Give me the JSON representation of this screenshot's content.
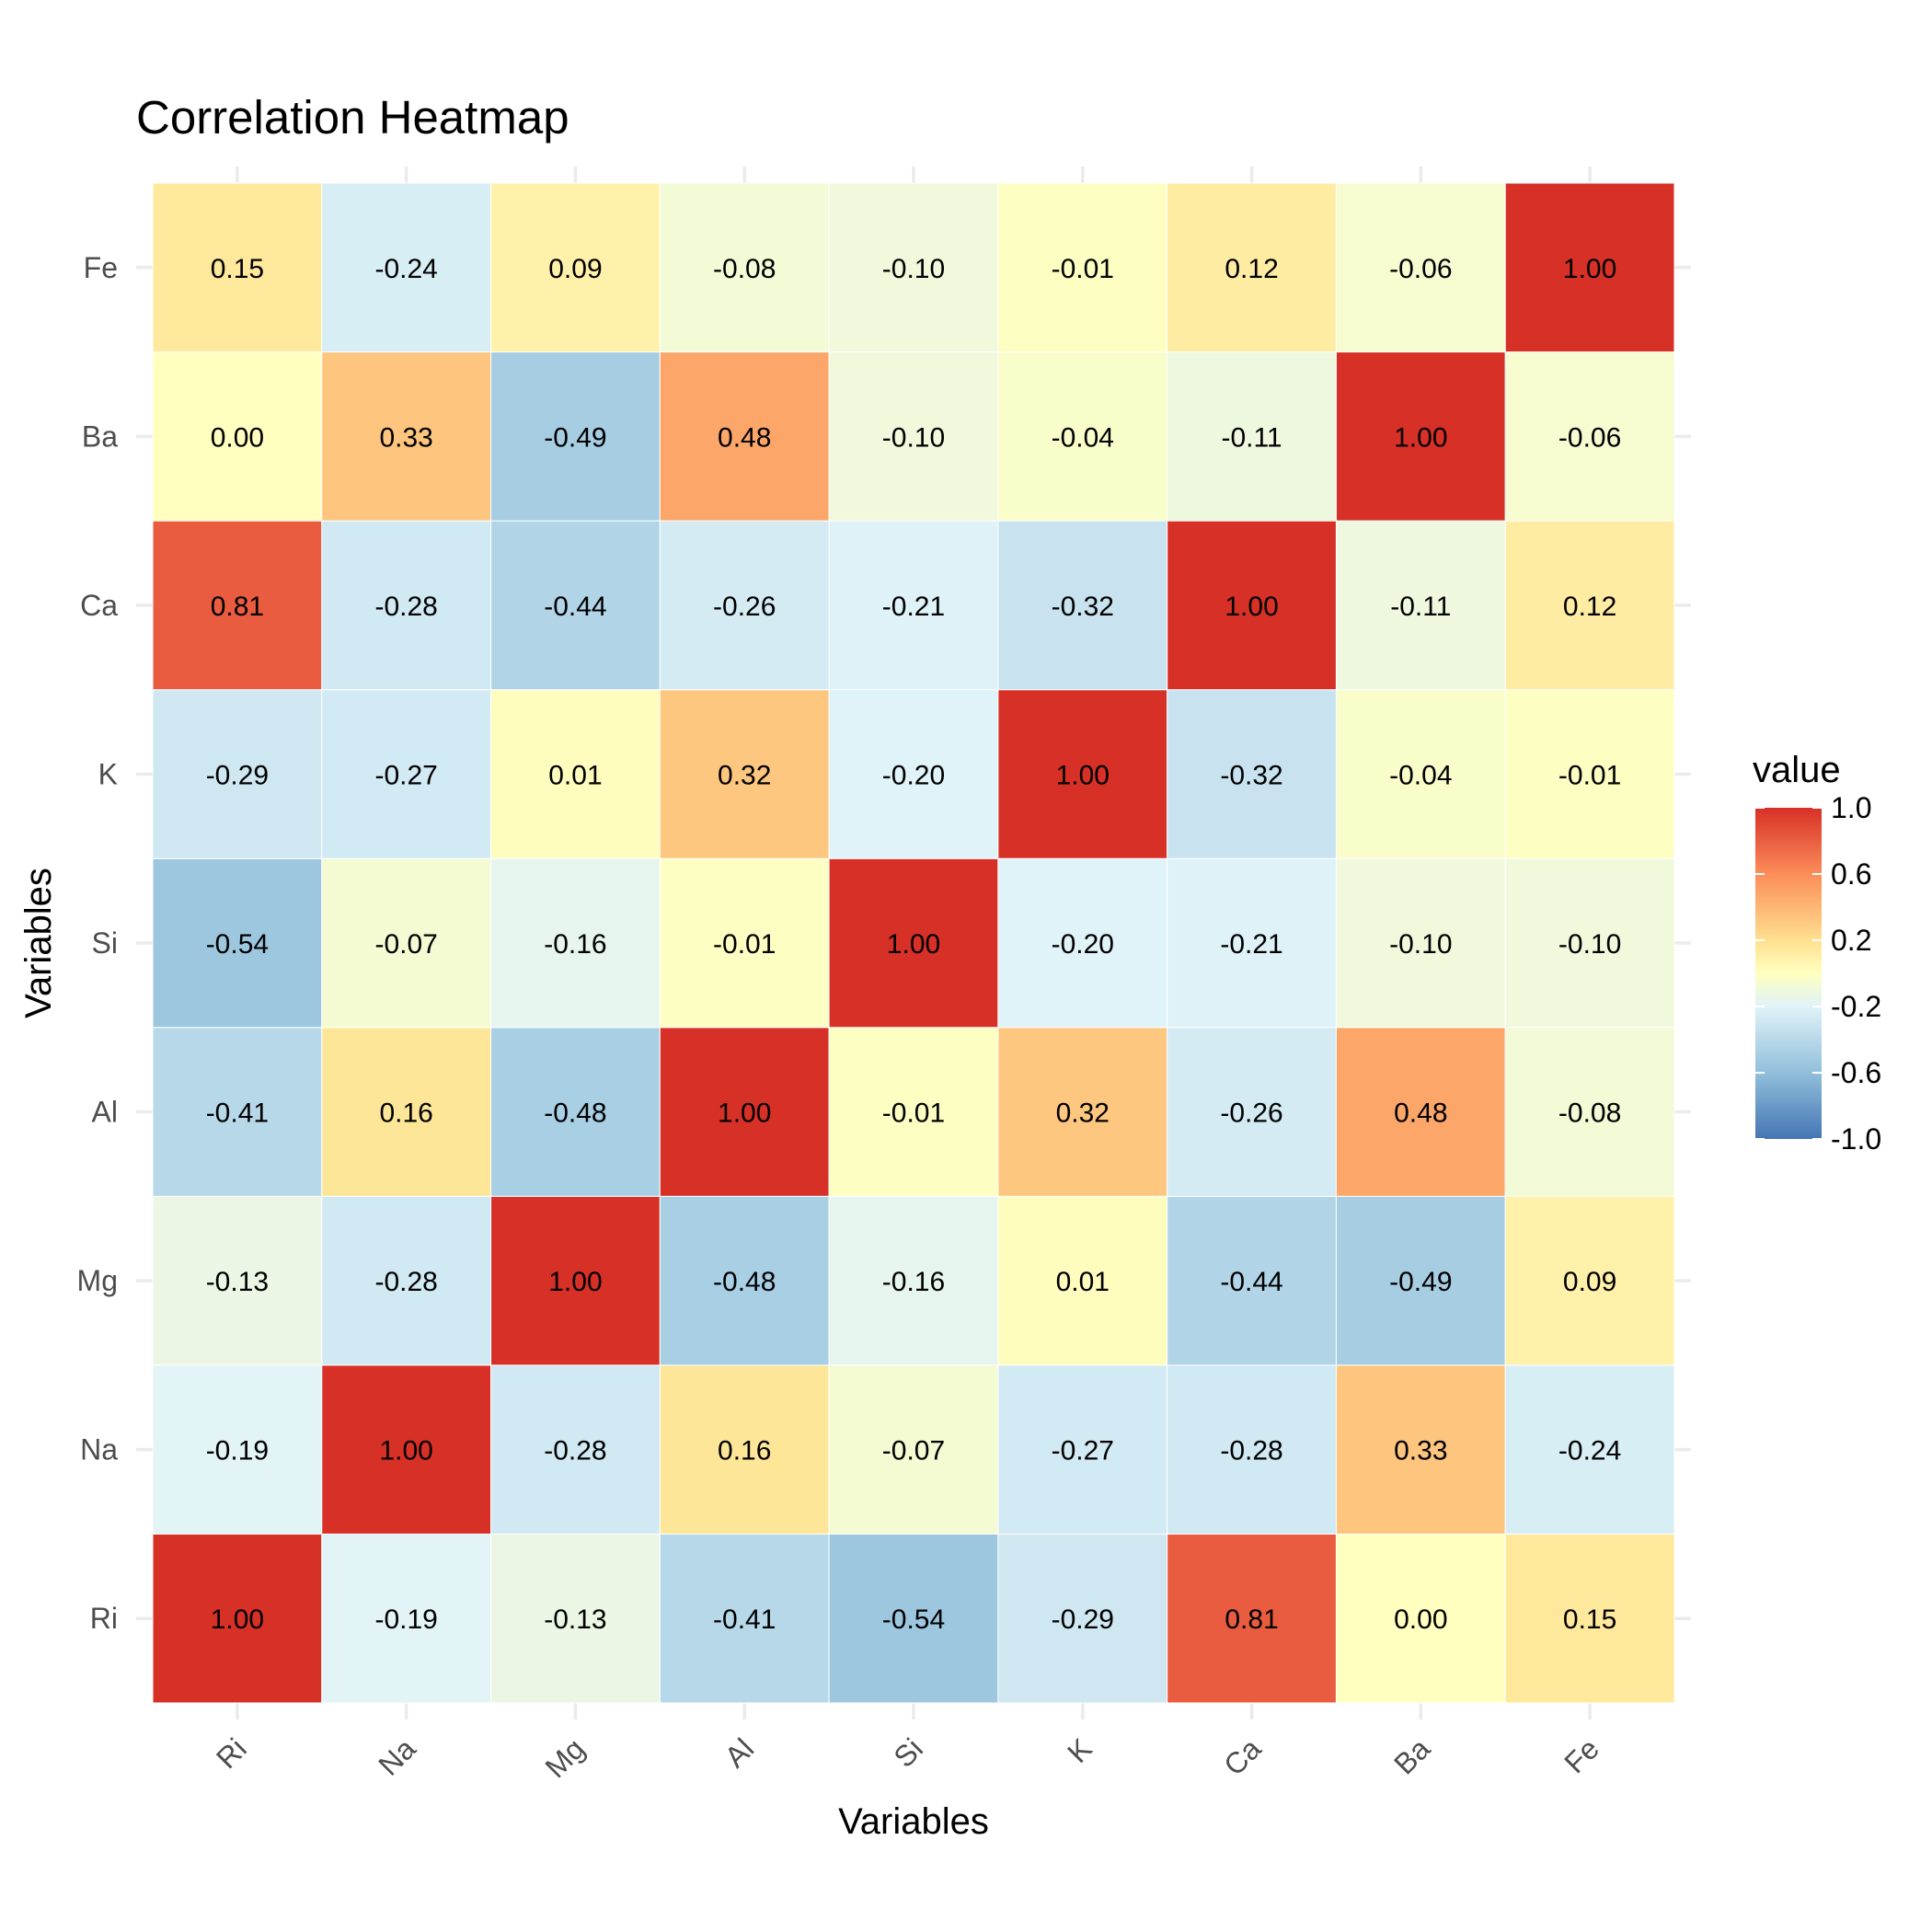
{
  "chart_data": {
    "type": "heatmap",
    "title": "Correlation Heatmap",
    "xlabel": "Variables",
    "ylabel": "Variables",
    "x_categories": [
      "Ri",
      "Na",
      "Mg",
      "Al",
      "Si",
      "K",
      "Ca",
      "Ba",
      "Fe"
    ],
    "y_categories": [
      "Ri",
      "Na",
      "Mg",
      "Al",
      "Si",
      "K",
      "Ca",
      "Ba",
      "Fe"
    ],
    "values": [
      [
        1.0,
        -0.19,
        -0.13,
        -0.41,
        -0.54,
        -0.29,
        0.81,
        0.0,
        0.15
      ],
      [
        -0.19,
        1.0,
        -0.28,
        0.16,
        -0.07,
        -0.27,
        -0.28,
        0.33,
        -0.24
      ],
      [
        -0.13,
        -0.28,
        1.0,
        -0.48,
        -0.16,
        0.01,
        -0.44,
        -0.49,
        0.09
      ],
      [
        -0.41,
        0.16,
        -0.48,
        1.0,
        -0.01,
        0.32,
        -0.26,
        0.48,
        -0.08
      ],
      [
        -0.54,
        -0.07,
        -0.16,
        -0.01,
        1.0,
        -0.2,
        -0.21,
        -0.1,
        -0.1
      ],
      [
        -0.29,
        -0.27,
        0.01,
        0.32,
        -0.2,
        1.0,
        -0.32,
        -0.04,
        -0.01
      ],
      [
        0.81,
        -0.28,
        -0.44,
        -0.26,
        -0.21,
        -0.32,
        1.0,
        -0.11,
        0.12
      ],
      [
        0.0,
        0.33,
        -0.49,
        0.48,
        -0.1,
        -0.04,
        -0.11,
        1.0,
        -0.06
      ],
      [
        0.15,
        -0.24,
        0.09,
        -0.08,
        -0.1,
        -0.01,
        0.12,
        -0.06,
        1.0
      ]
    ],
    "value_labels_format": "2 decimals",
    "legend": {
      "title": "value",
      "placement": "right",
      "ticks": [
        "1.0",
        "0.6",
        "0.2",
        "-0.2",
        "-0.6",
        "-1.0"
      ],
      "tick_values": [
        1.0,
        0.6,
        0.2,
        -0.2,
        -0.6,
        -1.0
      ],
      "range": [
        -1.0,
        1.0
      ]
    },
    "color_scale": {
      "name": "RdYlBu diverging",
      "stops": [
        {
          "value": -1.0,
          "color": "#4575b4"
        },
        {
          "value": -0.6,
          "color": "#91bfdb"
        },
        {
          "value": -0.2,
          "color": "#e0f3f8"
        },
        {
          "value": 0.0,
          "color": "#ffffbf"
        },
        {
          "value": 0.2,
          "color": "#fee090"
        },
        {
          "value": 0.6,
          "color": "#fc8d59"
        },
        {
          "value": 1.0,
          "color": "#d73027"
        }
      ]
    },
    "grid": true,
    "theme": "minimal"
  }
}
